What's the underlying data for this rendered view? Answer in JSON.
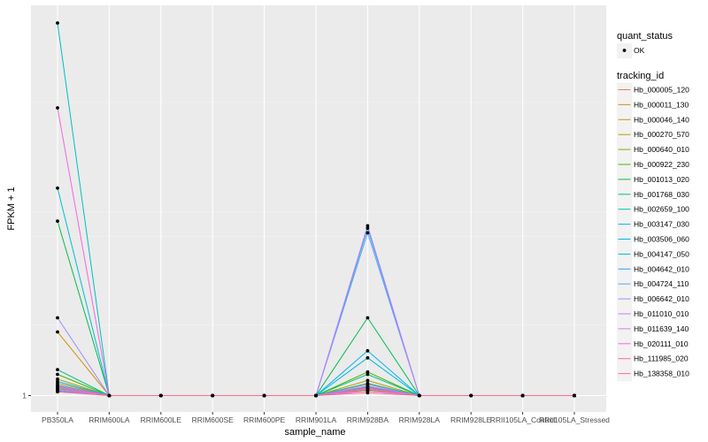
{
  "chart_data": {
    "type": "line",
    "title": "",
    "xlabel": "sample_name",
    "ylabel": "FPKM + 1",
    "y_tick_labels": [
      "1"
    ],
    "ylim": [
      1,
      80
    ],
    "grid": true,
    "legend_placement": "right",
    "categories": [
      "PB350LA",
      "RRIM600LA",
      "RRIM600LE",
      "RRIM600SE",
      "RRIM600PE",
      "RRIM901LA",
      "RRIM928BA",
      "RRIM928LA",
      "RRIM928LE",
      "RRII105LA_Control",
      "RRII105LA_Stressed"
    ],
    "point_legend": {
      "title": "quant_status",
      "entries": [
        "OK"
      ]
    },
    "series_legend_title": "tracking_id",
    "series": [
      {
        "name": "Hb_000005_120",
        "color": "#F8766D",
        "values": [
          3.0,
          1,
          1,
          1,
          1,
          1,
          3.4,
          1,
          1,
          1,
          1
        ]
      },
      {
        "name": "Hb_000011_130",
        "color": "#E7851E",
        "values": [
          2.4,
          1,
          1,
          1,
          1,
          1,
          2.6,
          1,
          1,
          1,
          1
        ]
      },
      {
        "name": "Hb_000046_140",
        "color": "#D09400",
        "values": [
          14.5,
          1,
          1,
          1,
          1,
          1,
          3.0,
          1,
          1,
          1,
          1
        ]
      },
      {
        "name": "Hb_000270_570",
        "color": "#B2A100",
        "values": [
          3.6,
          1,
          1,
          1,
          1,
          1,
          4.2,
          1,
          1,
          1,
          1
        ]
      },
      {
        "name": "Hb_000640_010",
        "color": "#89AC00",
        "values": [
          4.5,
          1,
          1,
          1,
          1,
          1,
          2.2,
          1,
          1,
          1,
          1
        ]
      },
      {
        "name": "Hb_000922_230",
        "color": "#45B500",
        "values": [
          5.5,
          1,
          1,
          1,
          1,
          1,
          6.0,
          1,
          1,
          1,
          1
        ]
      },
      {
        "name": "Hb_001013_020",
        "color": "#00BC51",
        "values": [
          38.0,
          1,
          1,
          1,
          1,
          1,
          17.5,
          1,
          1,
          1,
          1
        ]
      },
      {
        "name": "Hb_001768_030",
        "color": "#00C087",
        "values": [
          6.5,
          1,
          1,
          1,
          1,
          1,
          5.5,
          1,
          1,
          1,
          1
        ]
      },
      {
        "name": "Hb_002659_100",
        "color": "#00C0B2",
        "values": [
          3.2,
          1,
          1,
          1,
          1,
          1,
          3.6,
          1,
          1,
          1,
          1
        ]
      },
      {
        "name": "Hb_003147_030",
        "color": "#00BCD6",
        "values": [
          45.0,
          1,
          1,
          1,
          1,
          1,
          9.0,
          1,
          1,
          1,
          1
        ]
      },
      {
        "name": "Hb_003506_060",
        "color": "#00B3F2",
        "values": [
          2.0,
          1,
          1,
          1,
          1,
          1,
          10.5,
          1,
          1,
          1,
          1
        ]
      },
      {
        "name": "Hb_004147_050",
        "color": "#00BFC4",
        "values": [
          80.0,
          1,
          1,
          1,
          1,
          1,
          36.5,
          1,
          1,
          1,
          1
        ]
      },
      {
        "name": "Hb_004642_010",
        "color": "#29A3FF",
        "values": [
          4.0,
          1,
          1,
          1,
          1,
          1,
          2.8,
          1,
          1,
          1,
          1
        ]
      },
      {
        "name": "Hb_004724_110",
        "color": "#619CFF",
        "values": [
          2.6,
          1,
          1,
          1,
          1,
          1,
          35.5,
          1,
          1,
          1,
          1
        ]
      },
      {
        "name": "Hb_006642_010",
        "color": "#9C8DFF",
        "values": [
          17.5,
          1,
          1,
          1,
          1,
          1,
          3.0,
          1,
          1,
          1,
          1
        ]
      },
      {
        "name": "Hb_011010_010",
        "color": "#C77CFF",
        "values": [
          3.0,
          1,
          1,
          1,
          1,
          1,
          37.0,
          1,
          1,
          1,
          1
        ]
      },
      {
        "name": "Hb_011639_140",
        "color": "#E66FF3",
        "values": [
          2.2,
          1,
          1,
          1,
          1,
          1,
          2.4,
          1,
          1,
          1,
          1
        ]
      },
      {
        "name": "Hb_020111_010",
        "color": "#F564E3",
        "values": [
          62.0,
          1,
          1,
          1,
          1,
          1,
          2.0,
          1,
          1,
          1,
          1
        ]
      },
      {
        "name": "Hb_111985_020",
        "color": "#FF64B0",
        "values": [
          2.8,
          1,
          1,
          1,
          1,
          1,
          2.5,
          1,
          1,
          1,
          1
        ]
      },
      {
        "name": "Hb_138358_010",
        "color": "#FF6C91",
        "values": [
          1.8,
          1,
          1,
          1,
          1,
          1,
          1.6,
          1,
          1,
          1,
          1
        ]
      }
    ]
  }
}
